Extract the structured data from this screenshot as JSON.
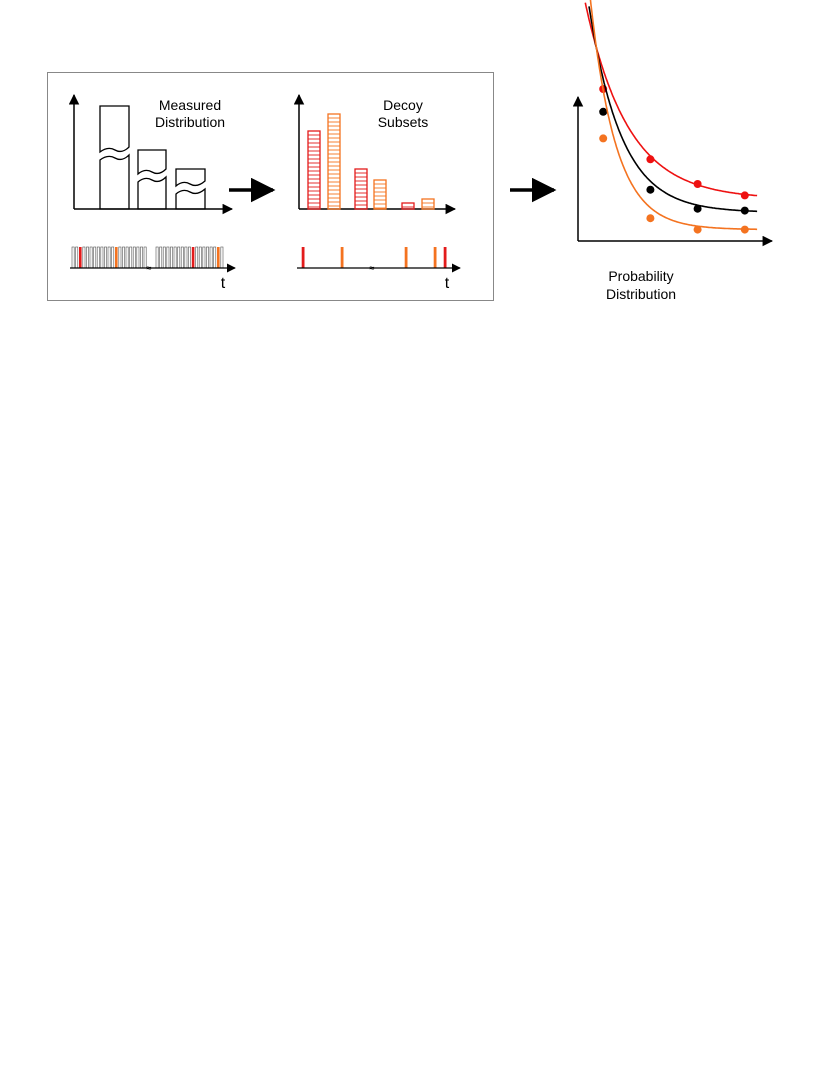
{
  "panels": {
    "measured": {
      "title_line1": "Measured",
      "title_line2": "Distribution",
      "time_label": "t"
    },
    "decoy": {
      "title_line1": "Decoy",
      "title_line2": "Subsets",
      "time_label": "t",
      "bar_values": [
        78,
        95,
        40,
        29,
        6,
        10
      ],
      "bar_series": [
        "red",
        "orange",
        "red",
        "orange",
        "red",
        "orange"
      ]
    },
    "probability": {
      "caption_line1": "Probability",
      "caption_line2": "Distribution",
      "curves": [
        {
          "name": "red",
          "color": "#ee1111",
          "points": [
            [
              1,
              0.8
            ],
            [
              2,
              0.43
            ],
            [
              3,
              0.3
            ],
            [
              4,
              0.24
            ]
          ]
        },
        {
          "name": "black",
          "color": "#000000",
          "points": [
            [
              1,
              0.68
            ],
            [
              2,
              0.27
            ],
            [
              3,
              0.17
            ],
            [
              4,
              0.16
            ]
          ]
        },
        {
          "name": "orange",
          "color": "#f47320",
          "points": [
            [
              1,
              0.54
            ],
            [
              2,
              0.12
            ],
            [
              3,
              0.06
            ],
            [
              4,
              0.06
            ]
          ]
        }
      ]
    }
  },
  "colors": {
    "red": "#e31b1b",
    "orange": "#f47320",
    "black": "#000000",
    "frame": "#888888"
  }
}
